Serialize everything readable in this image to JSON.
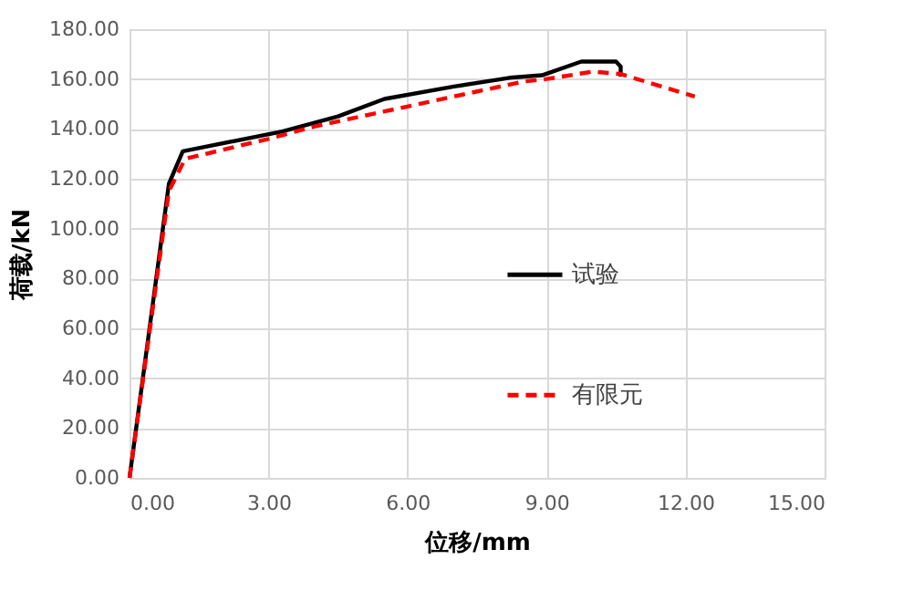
{
  "chart_data": {
    "type": "line",
    "xlabel": "位移/mm",
    "ylabel": "荷载/kN",
    "series": [
      {
        "name": "试验",
        "color": "#000000",
        "line_style": "solid",
        "x": [
          0,
          0.85,
          1.15,
          3.3,
          4.5,
          5.5,
          7.0,
          8.2,
          8.9,
          9.75,
          10.5,
          10.6,
          10.6
        ],
        "values": [
          0,
          118,
          131,
          139,
          145,
          152,
          157,
          160.5,
          161.5,
          167,
          167,
          165,
          161
        ]
      },
      {
        "name": "有限元",
        "color": "#ff0000",
        "line_style": "dashed",
        "x": [
          0,
          0.85,
          1.2,
          3.0,
          4.0,
          5.5,
          7.0,
          8.5,
          9.0,
          10.0,
          10.6,
          12.2
        ],
        "values": [
          0,
          115,
          128,
          136,
          141,
          147,
          153,
          159,
          160,
          163,
          162,
          153
        ]
      }
    ],
    "xlim": [
      0,
      15
    ],
    "xticks": [
      {
        "value": 0,
        "label": "0.00"
      },
      {
        "value": 3,
        "label": "3.00"
      },
      {
        "value": 6,
        "label": "6.00"
      },
      {
        "value": 9,
        "label": "9.00"
      },
      {
        "value": 12,
        "label": "12.00"
      },
      {
        "value": 15,
        "label": "15.00"
      }
    ],
    "ylim": [
      0,
      180
    ],
    "yticks": [
      {
        "value": 0,
        "label": "0.00"
      },
      {
        "value": 20,
        "label": "20.00"
      },
      {
        "value": 40,
        "label": "40.00"
      },
      {
        "value": 60,
        "label": "60.00"
      },
      {
        "value": 80,
        "label": "80.00"
      },
      {
        "value": 100,
        "label": "100.00"
      },
      {
        "value": 120,
        "label": "120.00"
      },
      {
        "value": 140,
        "label": "140.00"
      },
      {
        "value": 160,
        "label": "160.00"
      },
      {
        "value": 180,
        "label": "180.00"
      }
    ],
    "grid": true,
    "legend": "right",
    "marker": "none"
  }
}
